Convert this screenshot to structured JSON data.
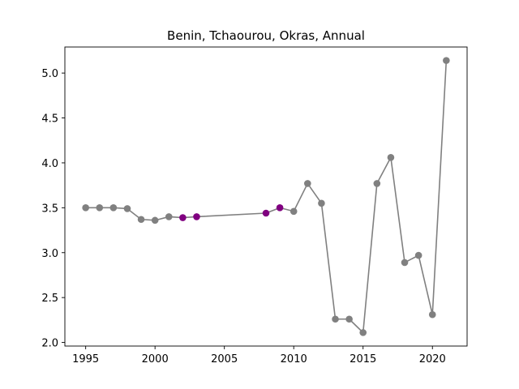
{
  "chart_data": {
    "type": "line",
    "title": "Benin, Tchaourou, Okras, Annual",
    "xlabel": "",
    "ylabel": "",
    "xlim": [
      1993.5,
      2022.5
    ],
    "ylim": [
      1.96,
      5.29
    ],
    "x_ticks": [
      1995,
      2000,
      2005,
      2010,
      2015,
      2020
    ],
    "y_ticks": [
      2.0,
      2.5,
      3.0,
      3.5,
      4.0,
      4.5,
      5.0
    ],
    "grid": false,
    "line_color": "#808080",
    "point_color": "#808080",
    "highlight_color": "#800080",
    "series": [
      {
        "points": [
          {
            "x": 1995,
            "y": 3.5,
            "highlight": false
          },
          {
            "x": 1996,
            "y": 3.5,
            "highlight": false
          },
          {
            "x": 1997,
            "y": 3.5,
            "highlight": false
          },
          {
            "x": 1998,
            "y": 3.49,
            "highlight": false
          },
          {
            "x": 1999,
            "y": 3.37,
            "highlight": false
          },
          {
            "x": 2000,
            "y": 3.36,
            "highlight": false
          },
          {
            "x": 2001,
            "y": 3.4,
            "highlight": false
          },
          {
            "x": 2002,
            "y": 3.39,
            "highlight": true
          },
          {
            "x": 2003,
            "y": 3.4,
            "highlight": true
          },
          {
            "x": 2008,
            "y": 3.44,
            "highlight": true
          },
          {
            "x": 2009,
            "y": 3.5,
            "highlight": true
          },
          {
            "x": 2010,
            "y": 3.46,
            "highlight": false
          },
          {
            "x": 2011,
            "y": 3.77,
            "highlight": false
          },
          {
            "x": 2012,
            "y": 3.55,
            "highlight": false
          },
          {
            "x": 2013,
            "y": 2.26,
            "highlight": false
          },
          {
            "x": 2014,
            "y": 2.26,
            "highlight": false
          },
          {
            "x": 2015,
            "y": 2.11,
            "highlight": false
          },
          {
            "x": 2016,
            "y": 3.77,
            "highlight": false
          },
          {
            "x": 2017,
            "y": 4.06,
            "highlight": false
          },
          {
            "x": 2018,
            "y": 2.89,
            "highlight": false
          },
          {
            "x": 2019,
            "y": 2.97,
            "highlight": false
          },
          {
            "x": 2020,
            "y": 2.31,
            "highlight": false
          },
          {
            "x": 2021,
            "y": 5.14,
            "highlight": false
          }
        ]
      }
    ]
  }
}
